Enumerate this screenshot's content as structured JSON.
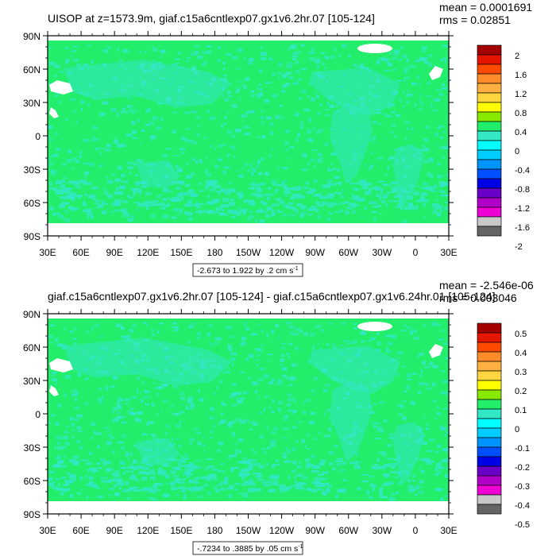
{
  "panels": [
    {
      "title": "UISOP at z=1573.9m, giaf.c15a6cntlexp07.gx1v6.2hr.07 [105-124]",
      "stats": {
        "mean": "mean = 0.0001691",
        "rms": "rms = 0.02851"
      },
      "range_label": "-2.673 to 1.922 by .2 cm s",
      "range_unit_exp": "-1",
      "lat_ticks": [
        "90N",
        "60N",
        "30N",
        "0",
        "30S",
        "60S",
        "90S"
      ],
      "lon_ticks": [
        "30E",
        "60E",
        "90E",
        "120E",
        "150E",
        "180",
        "150W",
        "120W",
        "90W",
        "60W",
        "30W",
        "0",
        "30E"
      ],
      "colorbar": {
        "labels": [
          "2",
          "1.6",
          "1.2",
          "0.8",
          "0.4",
          "0",
          "-0.4",
          "-0.8",
          "-1.2",
          "-1.6",
          "-2"
        ]
      }
    },
    {
      "title": "giaf.c15a6cntlexp07.gx1v6.2hr.07 [105-124] - giaf.c15a6cntlexp07.gx1v6.24hr.01 [105-124]",
      "stats": {
        "mean": "mean = -2.546e-06",
        "rms": "rms = 0.003046"
      },
      "range_label": "-.7234 to .3885 by .05 cm s",
      "range_unit_exp": "-1",
      "lat_ticks": [
        "90N",
        "60N",
        "30N",
        "0",
        "30S",
        "60S",
        "90S"
      ],
      "lon_ticks": [
        "30E",
        "60E",
        "90E",
        "120E",
        "150E",
        "180",
        "150W",
        "120W",
        "90W",
        "60W",
        "30W",
        "0",
        "30E"
      ],
      "colorbar": {
        "labels": [
          "0.5",
          "0.4",
          "0.3",
          "0.2",
          "0.1",
          "0",
          "-0.1",
          "-0.2",
          "-0.3",
          "-0.4",
          "-0.5"
        ]
      }
    }
  ],
  "colors": {
    "ocean": "#22ee6c",
    "field_light": "#33e8c4",
    "land": "#ffffff",
    "swatches": [
      "#a50000",
      "#e61500",
      "#ff4a00",
      "#ff8c28",
      "#ffb040",
      "#ffd640",
      "#ffff00",
      "#88e800",
      "#22ee6c",
      "#33e8c4",
      "#00ffff",
      "#00ccff",
      "#0094ff",
      "#0050ff",
      "#0000e6",
      "#6a00c8",
      "#b000c8",
      "#ee00d4",
      "#c8c8c8",
      "#646464"
    ]
  }
}
